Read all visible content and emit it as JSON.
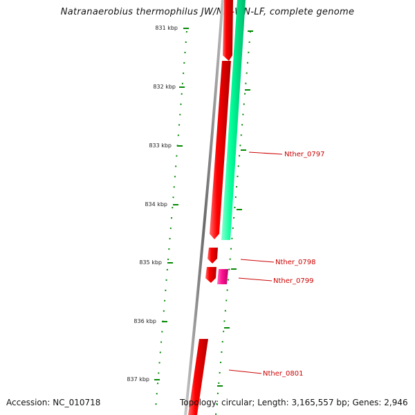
{
  "header": {
    "title": "Natranaerobius thermophilus JW/NM-WN-LF, complete genome"
  },
  "footer": {
    "accession": "Accession: NC_010718",
    "stats": "Topology: circular; Length: 3,165,557 bp; Genes: 2,946"
  },
  "colors": {
    "forward_gene": "#ff0000",
    "reverse_gene": "#00ff99",
    "highlight_gene": "#ff1493",
    "backbone": "#888888",
    "tick": "#008800",
    "label": "#cc0000"
  },
  "ruler": {
    "unit": "kbp",
    "ticks": [
      {
        "label": "831 kbp"
      },
      {
        "label": "832 kbp"
      },
      {
        "label": "833 kbp"
      },
      {
        "label": "834 kbp"
      },
      {
        "label": "835 kbp"
      },
      {
        "label": "836 kbp"
      },
      {
        "label": "837 kbp"
      }
    ]
  },
  "genes": [
    {
      "name": "Nther_0797",
      "labeled": true
    },
    {
      "name": "Nther_0798",
      "labeled": true
    },
    {
      "name": "Nther_0799",
      "labeled": true
    },
    {
      "name": "Nther_0801",
      "labeled": true
    }
  ]
}
